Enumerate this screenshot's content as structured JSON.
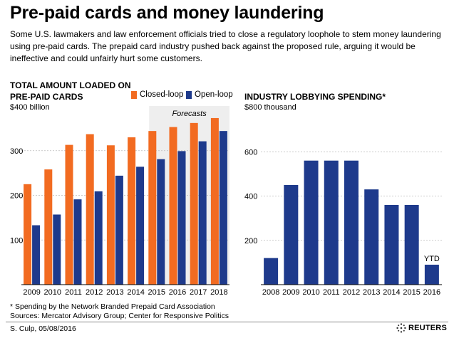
{
  "header": {
    "title": "Pre-paid cards and money laundering",
    "subtitle": "Some U.S. lawmakers and law enforcement officials tried to close a regulatory loophole to stem money laundering using pre-paid cards. The prepaid card industry pushed back against the proposed rule, arguing it would be ineffective and could unfairly hurt some customers."
  },
  "left": {
    "title_line1": "TOTAL AMOUNT LOADED ON",
    "title_line2": "PRE-PAID CARDS",
    "unit": "$400 billion",
    "legend_closed": "Closed-loop",
    "legend_open": "Open-loop",
    "forecast_label": "Forecasts"
  },
  "right": {
    "title": "INDUSTRY LOBBYING SPENDING*",
    "unit": "$800 thousand",
    "ytd_label": "YTD"
  },
  "footer": {
    "note": "* Spending by the Network Branded Prepaid Card Association",
    "sources": "Sources:  Mercator Advisory Group; Center for Responsive Politics",
    "credit": "S. Culp,  05/08/2016",
    "logo": "REUTERS"
  },
  "colors": {
    "closed_loop": "#f26b21",
    "open_loop": "#1e3a8c",
    "forecast_bg": "#eeeeee"
  },
  "chart_data": [
    {
      "type": "bar",
      "title": "TOTAL AMOUNT LOADED ON PRE-PAID CARDS",
      "ylabel": "$400 billion",
      "categories": [
        "2009",
        "2010",
        "2011",
        "2012",
        "2013",
        "2014",
        "2015",
        "2016",
        "2017",
        "2018"
      ],
      "series": [
        {
          "name": "Closed-loop",
          "values": [
            225,
            258,
            313,
            337,
            312,
            330,
            344,
            353,
            362,
            373
          ]
        },
        {
          "name": "Open-loop",
          "values": [
            133,
            157,
            191,
            209,
            244,
            264,
            281,
            299,
            321,
            344
          ]
        }
      ],
      "forecast_categories": [
        "2015",
        "2016",
        "2017",
        "2018"
      ],
      "forecast_label": "Forecasts",
      "yticks": [
        100,
        200,
        300
      ],
      "ylim": [
        0,
        400
      ],
      "grid": true,
      "legend": "top"
    },
    {
      "type": "bar",
      "title": "INDUSTRY LOBBYING SPENDING*",
      "ylabel": "$800 thousand",
      "categories": [
        "2008",
        "2009",
        "2010",
        "2011",
        "2012",
        "2013",
        "2014",
        "2015",
        "2016"
      ],
      "values": [
        120,
        450,
        560,
        560,
        560,
        430,
        360,
        360,
        90
      ],
      "annotation": {
        "category": "2016",
        "text": "YTD"
      },
      "yticks": [
        200,
        400,
        600
      ],
      "ylim": [
        0,
        800
      ],
      "grid": true
    }
  ]
}
